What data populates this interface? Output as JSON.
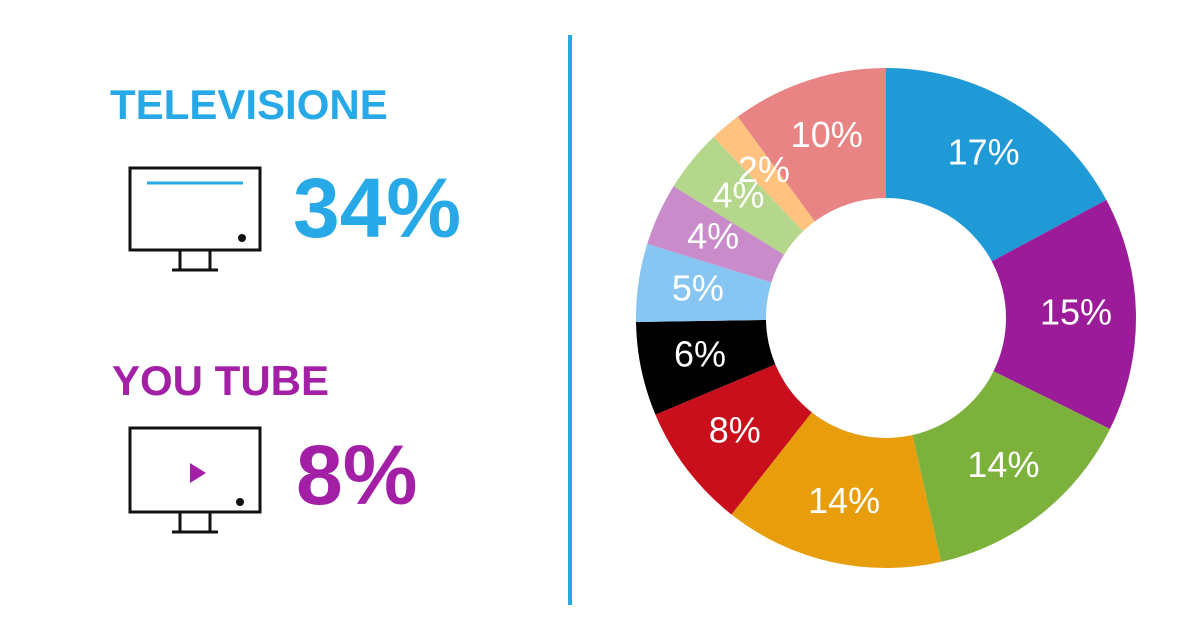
{
  "panel": {
    "items": [
      {
        "label": "TELEVISIONE",
        "share": "34%",
        "color": "#26a9e6"
      },
      {
        "label": "YOU TUBE",
        "share": "8%",
        "color": "#a21fa6"
      }
    ]
  },
  "chart_data": {
    "type": "pie",
    "values": [
      17,
      15,
      14,
      14,
      8,
      6,
      5,
      4,
      4,
      2,
      10
    ],
    "value_labels": [
      "17%",
      "15%",
      "14%",
      "14%",
      "8%",
      "6%",
      "5%",
      "4%",
      "4%",
      "2%",
      "10%"
    ],
    "colors": [
      "#1f9ad6",
      "#9c1b99",
      "#7cb23b",
      "#e79d0c",
      "#c80f1b",
      "#000000",
      "#87c6f2",
      "#c98bc9",
      "#b4d78c",
      "#ffc37f",
      "#e88483"
    ]
  }
}
